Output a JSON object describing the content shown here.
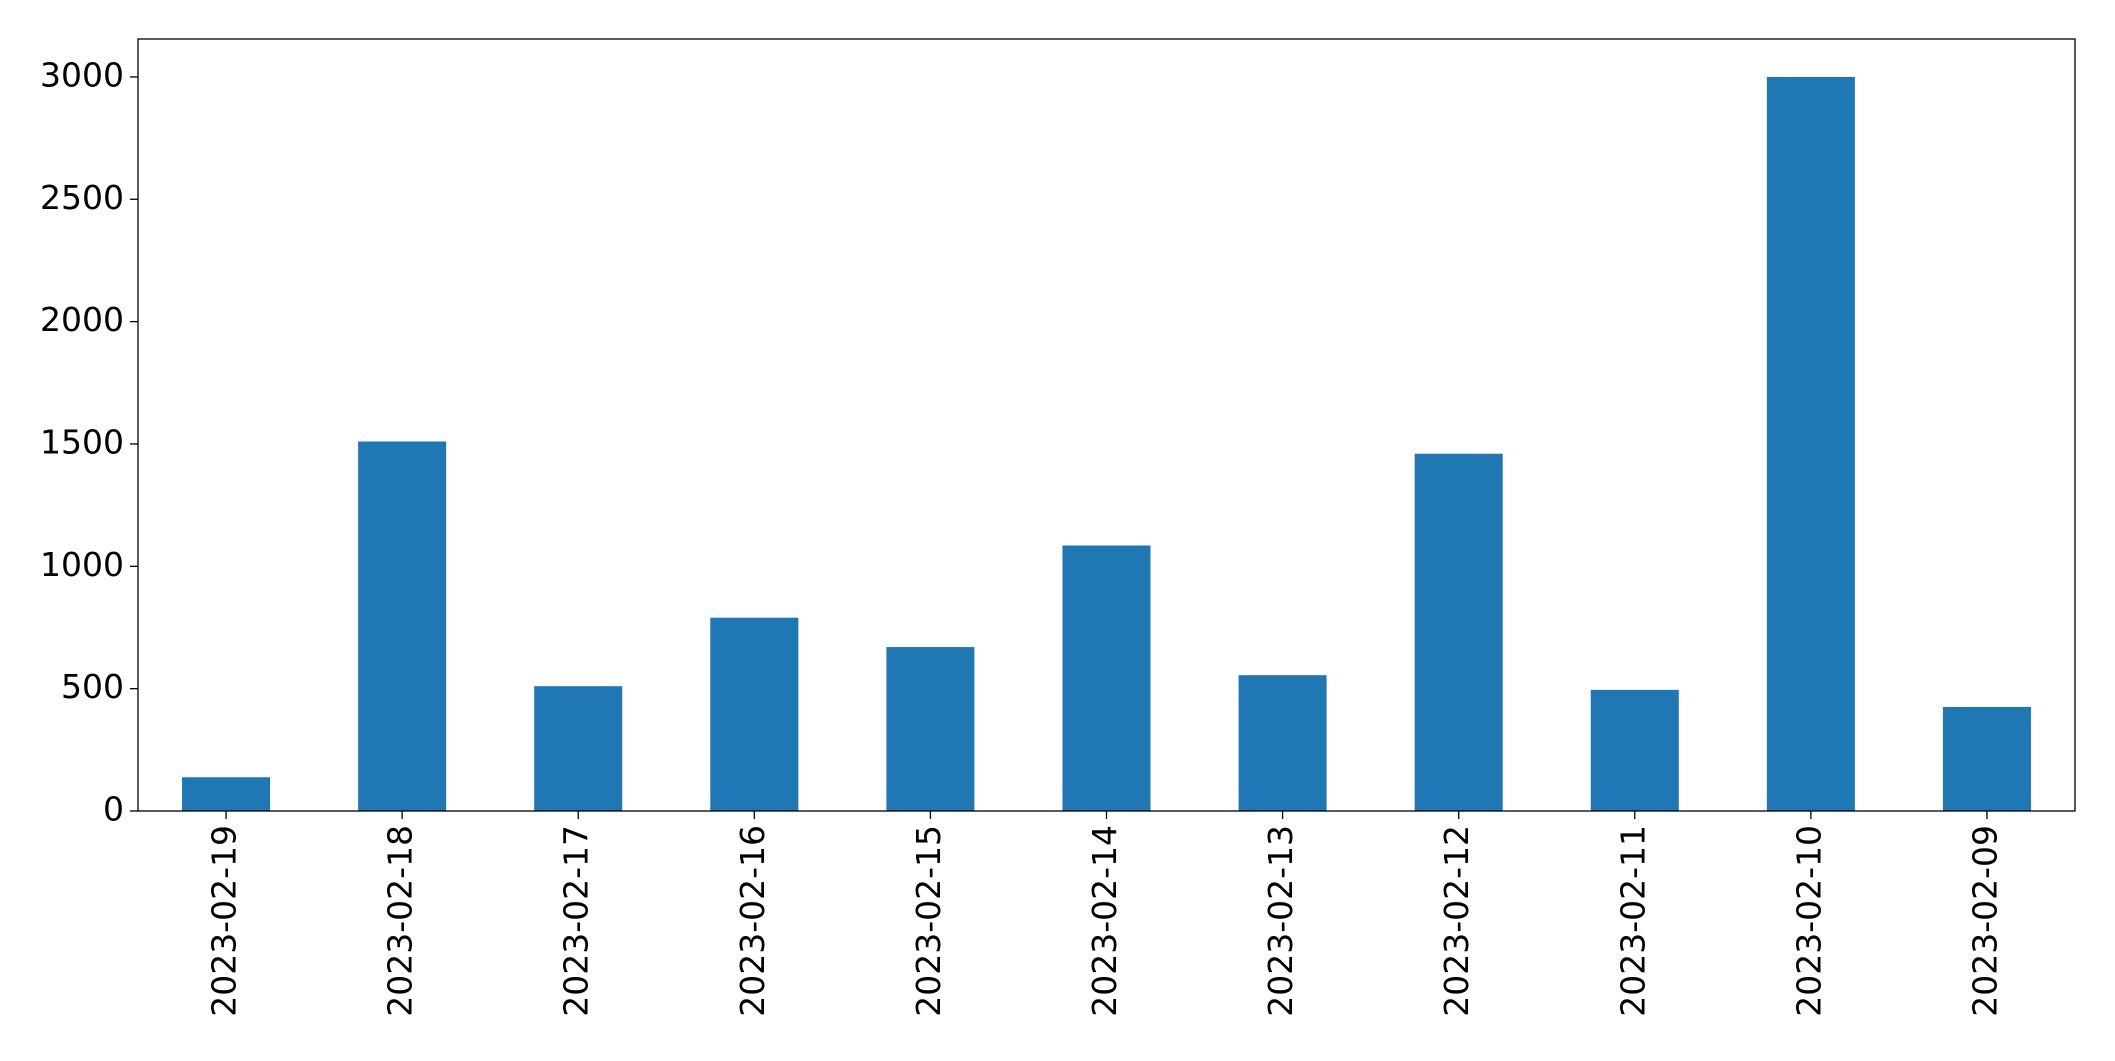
{
  "chart_data": {
    "type": "bar",
    "categories": [
      "2023-02-19",
      "2023-02-18",
      "2023-02-17",
      "2023-02-16",
      "2023-02-15",
      "2023-02-14",
      "2023-02-13",
      "2023-02-12",
      "2023-02-11",
      "2023-02-10",
      "2023-02-09"
    ],
    "values": [
      138,
      1510,
      510,
      790,
      670,
      1085,
      555,
      1460,
      495,
      3000,
      425
    ],
    "color": "#1f77b4",
    "ylim": [
      0,
      3155
    ],
    "yticks": [
      0,
      500,
      1000,
      1500,
      2000,
      2500,
      3000
    ],
    "grid": false
  }
}
